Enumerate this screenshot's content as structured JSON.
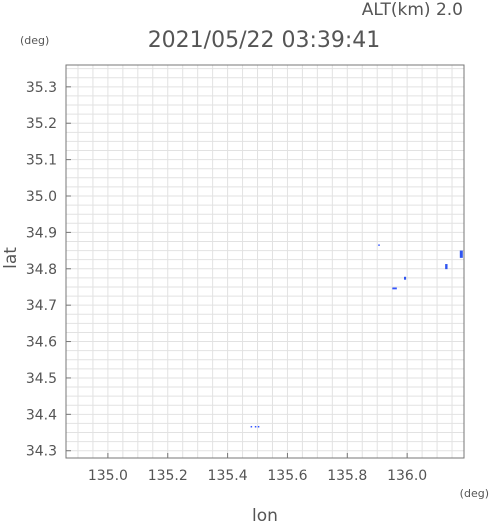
{
  "header": {
    "altitude": "ALT(km) 2.0",
    "timestamp": "2021/05/22 03:39:41"
  },
  "chart_data": {
    "type": "scatter",
    "title": "2021/05/22 03:39:41",
    "subtitle": "ALT(km) 2.0",
    "xlabel": "lon",
    "ylabel": "lat",
    "x_unit": "(deg)",
    "y_unit": "(deg)",
    "xlim": [
      134.86,
      136.19
    ],
    "ylim": [
      34.28,
      35.36
    ],
    "x_ticks": [
      135.0,
      135.2,
      135.4,
      135.6,
      135.8,
      136.0
    ],
    "x_tick_labels": [
      "135.0",
      "135.2",
      "135.4",
      "135.6",
      "135.8",
      "136.0"
    ],
    "y_ticks": [
      34.3,
      34.4,
      34.5,
      34.6,
      34.7,
      34.8,
      34.9,
      35.0,
      35.1,
      35.2,
      35.3
    ],
    "y_tick_labels": [
      "34.3",
      "34.4",
      "34.5",
      "34.6",
      "34.7",
      "34.8",
      "34.9",
      "35.0",
      "35.1",
      "35.2",
      "35.3"
    ],
    "grid": true,
    "colors": {
      "points": "#2f55f0",
      "sparse": "#3355ff",
      "frame": "#777777",
      "grid": "#e2e2e2",
      "text": "#555555"
    },
    "points": [
      {
        "x": 135.905,
        "y": 34.866,
        "w": 0.003,
        "h": 0.002
      },
      {
        "x": 135.958,
        "y": 34.746,
        "w": 0.015,
        "h": 0.005
      },
      {
        "x": 135.993,
        "y": 34.774,
        "w": 0.007,
        "h": 0.008
      },
      {
        "x": 136.131,
        "y": 34.806,
        "w": 0.008,
        "h": 0.014
      },
      {
        "x": 136.181,
        "y": 34.84,
        "w": 0.01,
        "h": 0.02
      },
      {
        "x": 135.478,
        "y": 34.367,
        "w": 0.002,
        "h": 0.002
      },
      {
        "x": 135.492,
        "y": 34.367,
        "w": 0.002,
        "h": 0.002
      },
      {
        "x": 135.502,
        "y": 34.367,
        "w": 0.002,
        "h": 0.002
      }
    ]
  }
}
